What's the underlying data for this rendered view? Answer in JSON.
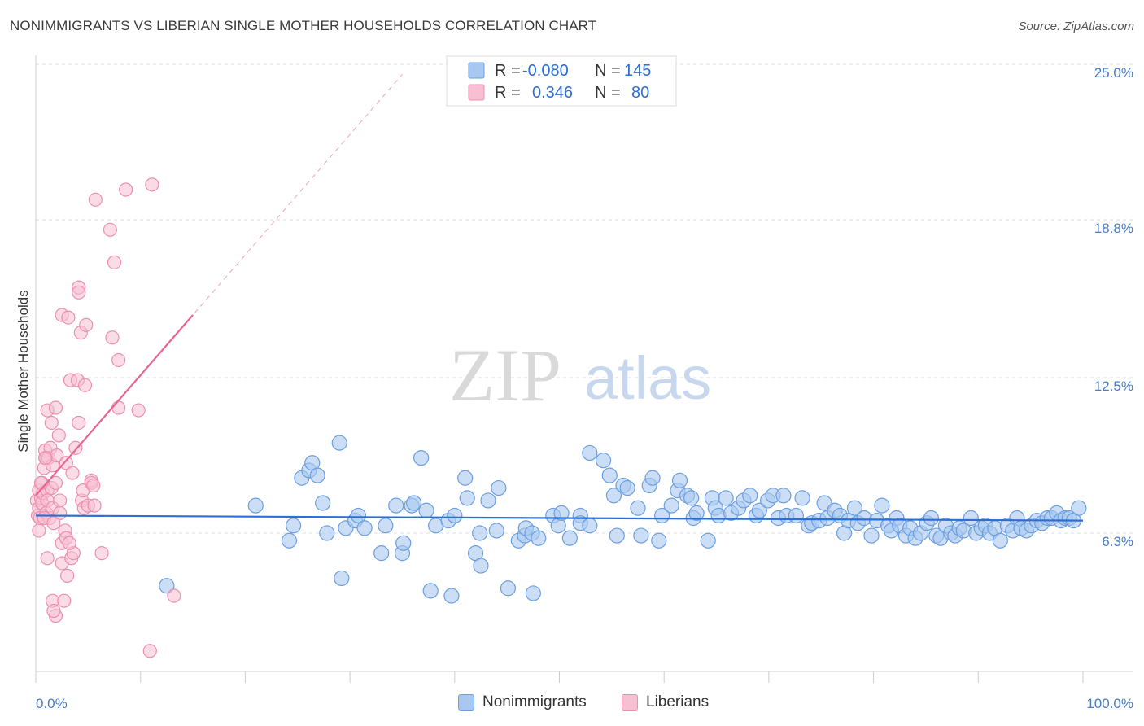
{
  "title": "NONIMMIGRANTS VS LIBERIAN SINGLE MOTHER HOUSEHOLDS CORRELATION CHART",
  "source": "Source: ZipAtlas.com",
  "watermark": {
    "zip": "ZIP",
    "atlas": "atlas"
  },
  "colors": {
    "blue_fill": "#a9c8f0",
    "blue_stroke": "#6b9fe0",
    "blue_line": "#2a6fd4",
    "pink_fill": "#f7bfd2",
    "pink_stroke": "#ec8fb0",
    "pink_line": "#e8658f",
    "axis_label": "#4a7cc8",
    "grid": "#dddddd"
  },
  "legend_top": {
    "rows": [
      {
        "r_label": "R = ",
        "r_value": "-0.080",
        "n_label": "N = ",
        "n_value": "145"
      },
      {
        "r_label": "R = ",
        "r_value": "0.346",
        "n_label": "N = ",
        "n_value": "80"
      }
    ]
  },
  "legend_bottom": [
    "Nonimmigrants",
    "Liberians"
  ],
  "chart_data": {
    "type": "scatter",
    "title": "NONIMMIGRANTS VS LIBERIAN SINGLE MOTHER HOUSEHOLDS CORRELATION CHART",
    "xlabel": "",
    "ylabel": "Single Mother Households",
    "xlim": [
      0,
      100
    ],
    "ylim": [
      0,
      26
    ],
    "x_tick_labels": [
      "0.0%",
      "100.0%"
    ],
    "y_ticks": [
      6.3,
      12.5,
      18.8,
      25.0
    ],
    "y_tick_labels": [
      "6.3%",
      "12.5%",
      "18.8%",
      "25.0%"
    ],
    "grid": true,
    "series": [
      {
        "name": "Nonimmigrants",
        "color": "#a9c8f0",
        "r": -0.08,
        "n": 145,
        "trend": {
          "x": [
            0,
            100
          ],
          "y": [
            7.0,
            6.8
          ]
        },
        "points": [
          [
            12.5,
            4.2
          ],
          [
            21,
            7.4
          ],
          [
            24.2,
            6.0
          ],
          [
            24.6,
            6.6
          ],
          [
            25.4,
            8.5
          ],
          [
            26.1,
            8.8
          ],
          [
            26.4,
            9.1
          ],
          [
            26.9,
            8.6
          ],
          [
            27.4,
            7.5
          ],
          [
            27.8,
            6.3
          ],
          [
            29,
            9.9
          ],
          [
            29.2,
            4.5
          ],
          [
            29.6,
            6.5
          ],
          [
            30.5,
            6.8
          ],
          [
            30.8,
            7.0
          ],
          [
            31.4,
            6.5
          ],
          [
            33,
            5.5
          ],
          [
            33.4,
            6.6
          ],
          [
            34.4,
            7.4
          ],
          [
            35,
            5.5
          ],
          [
            35.1,
            5.9
          ],
          [
            35.9,
            7.4
          ],
          [
            36.1,
            7.5
          ],
          [
            36.8,
            9.3
          ],
          [
            37.3,
            7.2
          ],
          [
            37.7,
            4.0
          ],
          [
            38.2,
            6.6
          ],
          [
            39.4,
            6.8
          ],
          [
            39.7,
            3.8
          ],
          [
            40,
            7.0
          ],
          [
            41,
            8.5
          ],
          [
            41.2,
            7.7
          ],
          [
            42,
            5.5
          ],
          [
            42.4,
            6.3
          ],
          [
            42.5,
            5.0
          ],
          [
            43.2,
            7.6
          ],
          [
            44,
            6.4
          ],
          [
            44.2,
            8.1
          ],
          [
            45.1,
            4.1
          ],
          [
            46.1,
            6.0
          ],
          [
            46.7,
            6.2
          ],
          [
            46.8,
            6.5
          ],
          [
            47.4,
            6.3
          ],
          [
            47.5,
            3.9
          ],
          [
            48,
            6.1
          ],
          [
            49.4,
            7.0
          ],
          [
            49.9,
            6.6
          ],
          [
            50.2,
            7.1
          ],
          [
            51,
            6.1
          ],
          [
            52,
            7.0
          ],
          [
            52,
            6.7
          ],
          [
            52.9,
            6.6
          ],
          [
            52.9,
            9.5
          ],
          [
            54.2,
            9.2
          ],
          [
            54.8,
            8.6
          ],
          [
            55.2,
            7.8
          ],
          [
            55.5,
            6.2
          ],
          [
            56.1,
            8.2
          ],
          [
            56.5,
            8.1
          ],
          [
            57.5,
            7.3
          ],
          [
            57.8,
            6.2
          ],
          [
            58.6,
            8.2
          ],
          [
            58.9,
            8.5
          ],
          [
            59.5,
            6.0
          ],
          [
            59.8,
            7.0
          ],
          [
            60.7,
            7.4
          ],
          [
            61.3,
            8.0
          ],
          [
            61.5,
            8.4
          ],
          [
            62.2,
            7.8
          ],
          [
            62.6,
            7.7
          ],
          [
            62.8,
            6.9
          ],
          [
            63.1,
            7.1
          ],
          [
            64.2,
            6.0
          ],
          [
            64.6,
            7.7
          ],
          [
            64.9,
            7.3
          ],
          [
            65.2,
            7.0
          ],
          [
            65.9,
            7.7
          ],
          [
            66.4,
            7.1
          ],
          [
            67.1,
            7.3
          ],
          [
            67.6,
            7.6
          ],
          [
            68.2,
            7.8
          ],
          [
            68.8,
            7.0
          ],
          [
            69.1,
            7.2
          ],
          [
            69.9,
            7.6
          ],
          [
            70.4,
            7.8
          ],
          [
            70.9,
            6.9
          ],
          [
            71.4,
            7.8
          ],
          [
            71.7,
            7.0
          ],
          [
            72.6,
            7.0
          ],
          [
            73.2,
            7.7
          ],
          [
            73.8,
            6.6
          ],
          [
            74.1,
            6.7
          ],
          [
            74.8,
            6.8
          ],
          [
            75.3,
            7.5
          ],
          [
            75.6,
            6.9
          ],
          [
            76.3,
            7.2
          ],
          [
            76.8,
            7.0
          ],
          [
            77.2,
            6.3
          ],
          [
            77.6,
            6.8
          ],
          [
            78.2,
            7.3
          ],
          [
            78.5,
            6.7
          ],
          [
            79.1,
            6.9
          ],
          [
            79.8,
            6.2
          ],
          [
            80.3,
            6.8
          ],
          [
            80.8,
            7.4
          ],
          [
            81.4,
            6.6
          ],
          [
            81.7,
            6.4
          ],
          [
            82.2,
            6.9
          ],
          [
            82.5,
            6.6
          ],
          [
            83.1,
            6.2
          ],
          [
            83.5,
            6.5
          ],
          [
            84,
            6.1
          ],
          [
            84.5,
            6.3
          ],
          [
            85.1,
            6.7
          ],
          [
            85.5,
            6.9
          ],
          [
            86,
            6.2
          ],
          [
            86.4,
            6.1
          ],
          [
            86.9,
            6.6
          ],
          [
            87.4,
            6.3
          ],
          [
            87.8,
            6.2
          ],
          [
            88.2,
            6.5
          ],
          [
            88.6,
            6.4
          ],
          [
            89.3,
            6.9
          ],
          [
            89.8,
            6.3
          ],
          [
            90.3,
            6.5
          ],
          [
            90.7,
            6.6
          ],
          [
            91.1,
            6.3
          ],
          [
            91.6,
            6.5
          ],
          [
            92.1,
            6.0
          ],
          [
            92.8,
            6.6
          ],
          [
            93.3,
            6.4
          ],
          [
            93.7,
            6.9
          ],
          [
            94.1,
            6.5
          ],
          [
            94.6,
            6.4
          ],
          [
            95.1,
            6.6
          ],
          [
            95.6,
            6.8
          ],
          [
            96.1,
            6.7
          ],
          [
            96.6,
            6.9
          ],
          [
            97,
            6.9
          ],
          [
            97.5,
            7.1
          ],
          [
            97.9,
            6.8
          ],
          [
            98.3,
            6.9
          ],
          [
            98.7,
            6.9
          ],
          [
            99.1,
            6.8
          ],
          [
            99.6,
            7.3
          ]
        ]
      },
      {
        "name": "Liberians",
        "color": "#f7bfd2",
        "r": 0.346,
        "n": 80,
        "trend": {
          "x": [
            0,
            15
          ],
          "y": [
            7.8,
            15.0
          ]
        },
        "trend_extended": {
          "x": [
            0,
            35
          ],
          "y": [
            7.8,
            24.6
          ]
        },
        "points": [
          [
            0.1,
            7.6
          ],
          [
            0.2,
            7.0
          ],
          [
            0.3,
            8.0
          ],
          [
            0.3,
            7.3
          ],
          [
            0.4,
            6.9
          ],
          [
            0.5,
            7.7
          ],
          [
            0.6,
            8.3
          ],
          [
            0.6,
            7.5
          ],
          [
            0.7,
            7.9
          ],
          [
            0.8,
            8.9
          ],
          [
            0.9,
            9.6
          ],
          [
            1.0,
            9.3
          ],
          [
            1.0,
            7.1
          ],
          [
            1.1,
            8.0
          ],
          [
            1.1,
            7.6
          ],
          [
            1.2,
            9.3
          ],
          [
            1.3,
            6.9
          ],
          [
            1.4,
            9.7
          ],
          [
            1.5,
            8.1
          ],
          [
            1.6,
            7.3
          ],
          [
            1.1,
            11.2
          ],
          [
            1.5,
            10.7
          ],
          [
            1.9,
            11.3
          ],
          [
            1.6,
            9.0
          ],
          [
            2.0,
            9.4
          ],
          [
            1.1,
            5.3
          ],
          [
            1.6,
            3.6
          ],
          [
            1.9,
            3.0
          ],
          [
            1.7,
            3.2
          ],
          [
            2.2,
            10.2
          ],
          [
            1.9,
            8.3
          ],
          [
            2.3,
            7.1
          ],
          [
            2.5,
            5.9
          ],
          [
            2.5,
            5.1
          ],
          [
            2.7,
            3.6
          ],
          [
            2.5,
            15.0
          ],
          [
            2.8,
            6.4
          ],
          [
            2.9,
            9.1
          ],
          [
            3.0,
            4.6
          ],
          [
            2.9,
            6.1
          ],
          [
            3.1,
            14.9
          ],
          [
            3.3,
            12.4
          ],
          [
            3.4,
            5.3
          ],
          [
            3.5,
            8.7
          ],
          [
            3.6,
            5.5
          ],
          [
            3.8,
            9.7
          ],
          [
            4.0,
            12.4
          ],
          [
            4.1,
            10.7
          ],
          [
            4.1,
            16.1
          ],
          [
            4.1,
            15.9
          ],
          [
            4.3,
            14.3
          ],
          [
            4.4,
            7.6
          ],
          [
            4.5,
            8.0
          ],
          [
            4.6,
            7.3
          ],
          [
            4.7,
            12.2
          ],
          [
            4.8,
            14.6
          ],
          [
            5.0,
            7.4
          ],
          [
            5.3,
            8.4
          ],
          [
            5.3,
            8.3
          ],
          [
            5.5,
            8.2
          ],
          [
            5.6,
            7.4
          ],
          [
            5.7,
            19.6
          ],
          [
            6.3,
            5.5
          ],
          [
            7.1,
            18.4
          ],
          [
            7.3,
            14.1
          ],
          [
            7.5,
            17.1
          ],
          [
            7.9,
            11.3
          ],
          [
            7.9,
            13.2
          ],
          [
            8.6,
            20.0
          ],
          [
            9.8,
            11.2
          ],
          [
            11.1,
            20.2
          ],
          [
            10.9,
            1.6
          ],
          [
            13.2,
            3.8
          ],
          [
            0.3,
            6.4
          ],
          [
            0.8,
            6.9
          ],
          [
            1.7,
            6.7
          ],
          [
            2.3,
            7.6
          ],
          [
            3.2,
            5.9
          ],
          [
            0.5,
            8.3
          ],
          [
            0.9,
            9.3
          ]
        ]
      }
    ]
  }
}
